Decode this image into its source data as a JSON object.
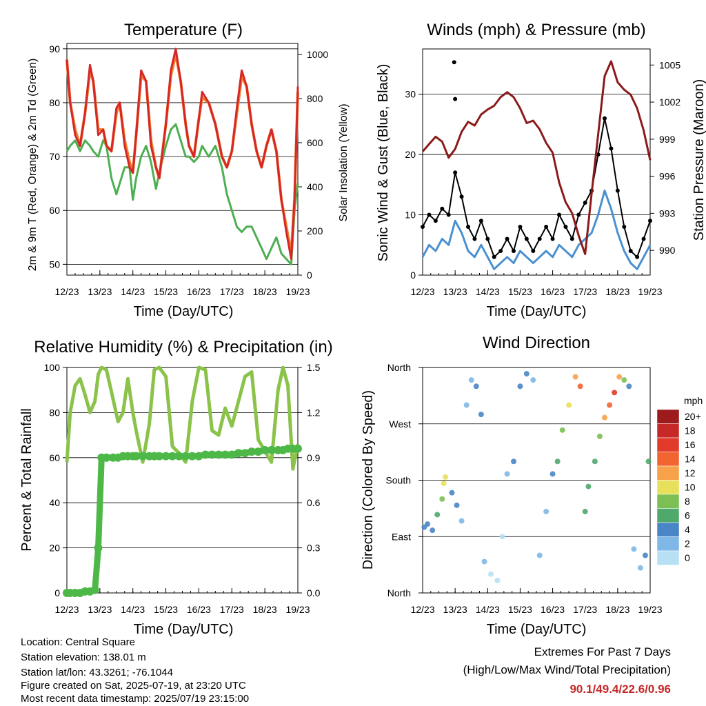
{
  "days": [
    "12/23",
    "13/23",
    "14/23",
    "15/23",
    "16/23",
    "17/23",
    "18/23",
    "19/23"
  ],
  "chart_data": [
    {
      "type": "line",
      "title": "Temperature (F)",
      "xlabel": "Time (Day/UTC)",
      "ylabel": "2m & 9m T (Red, Orange) & 2m Td (Green)",
      "y2label": "Solar Insolation (Yellow)",
      "ylim": [
        48,
        91
      ],
      "y_ticks": [
        50,
        60,
        70,
        80,
        90
      ],
      "y2lim": [
        0,
        1050
      ],
      "y2_ticks": [
        0,
        200,
        400,
        600,
        800,
        1000
      ],
      "x_day": [
        0,
        0.1,
        0.25,
        0.4,
        0.55,
        0.7,
        0.8,
        0.95,
        1.1,
        1.2,
        1.35,
        1.5,
        1.6,
        1.75,
        1.9,
        2.0,
        2.1,
        2.25,
        2.4,
        2.55,
        2.7,
        2.8,
        3.0,
        3.15,
        3.3,
        3.45,
        3.6,
        3.7,
        3.85,
        4.0,
        4.1,
        4.3,
        4.5,
        4.7,
        4.85,
        5.0,
        5.15,
        5.3,
        5.45,
        5.6,
        5.75,
        5.9,
        6.05,
        6.2,
        6.35,
        6.5,
        6.65,
        6.8,
        6.9,
        7.0
      ],
      "series": [
        {
          "color": "#d62728",
          "values": [
            88,
            80,
            74,
            72,
            78,
            87,
            84,
            74,
            75,
            72,
            71,
            79,
            80,
            72,
            68,
            67,
            74,
            86,
            84,
            72,
            68,
            66,
            76,
            86,
            90,
            84,
            76,
            72,
            70,
            77,
            82,
            80,
            76,
            70,
            68,
            71,
            79,
            86,
            83,
            76,
            71,
            68,
            72,
            75,
            71,
            62,
            56,
            51,
            62,
            83
          ]
        },
        {
          "color": "#f07f2d",
          "values": [
            88,
            80,
            75,
            72,
            78,
            86,
            84,
            75,
            75,
            72,
            71,
            78,
            80,
            73,
            69,
            67,
            74,
            85,
            84,
            73,
            68,
            66,
            76,
            85,
            89,
            84,
            76,
            72,
            70,
            77,
            81,
            80,
            76,
            70,
            68,
            71,
            78,
            85,
            83,
            76,
            71,
            68,
            72,
            75,
            71,
            62,
            57,
            52,
            62,
            82
          ]
        },
        {
          "color": "#4caf50",
          "values": [
            71,
            72,
            73,
            71,
            73,
            72,
            71,
            70,
            73,
            72,
            66,
            63,
            65,
            68,
            68,
            62,
            66,
            70,
            72,
            69,
            64,
            67,
            72,
            75,
            76,
            73,
            70,
            70,
            69,
            70,
            72,
            70,
            72,
            68,
            63,
            60,
            57,
            56,
            57,
            57,
            55,
            53,
            51,
            53,
            55,
            52,
            51,
            50,
            60,
            65
          ]
        }
      ]
    },
    {
      "type": "line",
      "title": "Winds (mph) & Pressure (mb)",
      "xlabel": "Time (Day/UTC)",
      "ylabel": "Sonic Wind & Gust (Blue, Black)",
      "y2label": "Station Pressure (Maroon)",
      "ylim": [
        0,
        37.5
      ],
      "y_ticks": [
        0,
        10,
        20,
        30
      ],
      "y2lim": [
        988.0,
        1006.3
      ],
      "y2_ticks": [
        990,
        993,
        996,
        999,
        1002,
        1005
      ],
      "x_day": [
        0,
        0.2,
        0.4,
        0.6,
        0.8,
        1.0,
        1.2,
        1.4,
        1.6,
        1.8,
        2.0,
        2.2,
        2.4,
        2.6,
        2.8,
        3.0,
        3.2,
        3.4,
        3.6,
        3.8,
        4.0,
        4.2,
        4.4,
        4.6,
        4.8,
        5.0,
        5.2,
        5.4,
        5.6,
        5.8,
        6.0,
        6.2,
        6.4,
        6.6,
        6.8,
        7.0
      ],
      "series": [
        {
          "color": "#8b1a1a",
          "values": [
            998.0,
            998.6,
            999.2,
            998.8,
            997.5,
            998.2,
            999.6,
            1000.4,
            1000.1,
            1001.0,
            1001.4,
            1001.7,
            1002.4,
            1002.8,
            1002.4,
            1001.5,
            1000.3,
            1000.5,
            999.8,
            998.7,
            997.9,
            995.5,
            993.9,
            993.0,
            991.2,
            989.7,
            994.6,
            999.4,
            1004.1,
            1005.3,
            1003.6,
            1003.0,
            1002.6,
            1001.5,
            999.7,
            997.3
          ]
        },
        {
          "color": "#4a90d0",
          "values": [
            3,
            5,
            4,
            6,
            5,
            9,
            7,
            4,
            3,
            5,
            3,
            1,
            2,
            3,
            2,
            4,
            3,
            2,
            3,
            4,
            3,
            5,
            4,
            3,
            5,
            6,
            7,
            10,
            14,
            11,
            7,
            4,
            2,
            1,
            3,
            5
          ]
        },
        {
          "color": "#000000",
          "values": [
            8,
            10,
            9,
            11,
            10,
            17,
            13,
            8,
            6,
            9,
            6,
            3,
            4,
            6,
            4,
            8,
            6,
            4,
            6,
            8,
            6,
            10,
            8,
            6,
            10,
            12,
            14,
            20,
            26,
            21,
            14,
            8,
            4,
            3,
            6,
            9
          ]
        }
      ],
      "annotation_values": [
        35.3,
        29.2
      ]
    },
    {
      "type": "line",
      "title": "Relative Humidity (%) & Precipitation (in)",
      "xlabel": "Time (Day/UTC)",
      "ylabel": "Percent & Total Rainfall",
      "ylim": [
        0,
        100
      ],
      "y_ticks": [
        0,
        20,
        40,
        60,
        80,
        100
      ],
      "y2lim": [
        0,
        1.5
      ],
      "y2_ticks": [
        "0.0",
        "0.3",
        "0.6",
        "0.9",
        "1.2",
        "1.5"
      ],
      "x_day": [
        0,
        0.1,
        0.25,
        0.4,
        0.55,
        0.7,
        0.85,
        0.95,
        1.05,
        1.2,
        1.4,
        1.55,
        1.7,
        1.85,
        2.0,
        2.1,
        2.3,
        2.5,
        2.65,
        2.8,
        3.0,
        3.2,
        3.4,
        3.6,
        3.8,
        4.0,
        4.2,
        4.4,
        4.6,
        4.8,
        5.0,
        5.2,
        5.4,
        5.6,
        5.8,
        6.0,
        6.2,
        6.4,
        6.55,
        6.7,
        6.85,
        7.0
      ],
      "series": [
        {
          "color": "#8bc34a",
          "values": [
            58,
            80,
            92,
            95,
            88,
            80,
            85,
            97,
            100,
            99,
            86,
            76,
            80,
            95,
            80,
            72,
            58,
            75,
            99,
            100,
            96,
            65,
            62,
            58,
            85,
            100,
            99,
            72,
            70,
            82,
            74,
            85,
            96,
            98,
            68,
            63,
            58,
            90,
            100,
            92,
            55,
            66
          ]
        },
        {
          "color": "#4db848",
          "name_hint": "",
          "values": [
            0,
            0,
            0,
            0,
            0.01,
            0.01,
            0.02,
            0.3,
            0.9,
            0.9,
            0.9,
            0.9,
            0.91,
            0.91,
            0.91,
            0.91,
            0.91,
            0.91,
            0.91,
            0.91,
            0.91,
            0.91,
            0.91,
            0.91,
            0.91,
            0.91,
            0.92,
            0.92,
            0.92,
            0.92,
            0.92,
            0.93,
            0.93,
            0.94,
            0.94,
            0.95,
            0.95,
            0.95,
            0.95,
            0.96,
            0.96,
            0.96
          ]
        }
      ]
    },
    {
      "type": "scatter",
      "title": "Wind Direction",
      "xlabel": "Time (Day/UTC)",
      "ylabel": "Direction (Colored By Speed)",
      "y_ticks": [
        "North",
        "East",
        "South",
        "West",
        "North"
      ],
      "legend_unit": "mph",
      "legend_labels": [
        "20+",
        "18",
        "16",
        "14",
        "12",
        "10",
        "8",
        "6",
        "4",
        "2",
        "0"
      ],
      "legend_colors": [
        "#9e1b1b",
        "#c62828",
        "#e23b2c",
        "#f26430",
        "#f7a24a",
        "#e8e05a",
        "#7cbf53",
        "#4fa96a",
        "#4a86c5",
        "#7fb8e6",
        "#b7e0f5"
      ],
      "x_day": [
        0.05,
        0.15,
        0.3,
        0.45,
        0.6,
        0.65,
        0.7,
        0.9,
        1.05,
        1.2,
        1.35,
        1.5,
        1.65,
        1.8,
        1.9,
        2.1,
        2.3,
        2.45,
        2.6,
        2.8,
        3.0,
        3.2,
        3.4,
        3.6,
        3.8,
        4.0,
        4.15,
        4.3,
        4.5,
        4.7,
        4.85,
        5.0,
        5.1,
        5.3,
        5.45,
        5.6,
        5.75,
        5.9,
        6.05,
        6.2,
        6.35,
        6.5,
        6.7,
        6.85,
        6.95
      ],
      "y_deg": [
        105,
        110,
        100,
        125,
        150,
        175,
        185,
        160,
        140,
        115,
        300,
        340,
        330,
        285,
        50,
        30,
        20,
        90,
        190,
        210,
        330,
        350,
        340,
        60,
        130,
        190,
        210,
        260,
        300,
        345,
        330,
        130,
        170,
        210,
        250,
        280,
        300,
        320,
        345,
        340,
        330,
        70,
        40,
        60,
        210
      ],
      "speed_mph": [
        4,
        4,
        5,
        6,
        9,
        11,
        10,
        5,
        4,
        3,
        2,
        3,
        4,
        5,
        2,
        1,
        1,
        1,
        3,
        4,
        4,
        5,
        3,
        2,
        3,
        5,
        6,
        8,
        10,
        12,
        15,
        7,
        6,
        7,
        9,
        12,
        14,
        16,
        12,
        8,
        5,
        3,
        2,
        4,
        6
      ]
    }
  ],
  "info": {
    "location": "Location: Central Square",
    "elevation": "Station elevation: 138.01 m",
    "latlon": "Station lat/lon: 43.3261; -76.1044",
    "created": "Figure created on Sat, 2025-07-19, at 23:20 UTC",
    "latest": "Most recent data timestamp: 2025/07/19 23:15:00"
  },
  "extremes": {
    "title": "Extremes For Past 7 Days",
    "subtitle": "(High/Low/Max Wind/Total Precipitation)",
    "values": "90.1/49.4/22.6/0.96"
  }
}
